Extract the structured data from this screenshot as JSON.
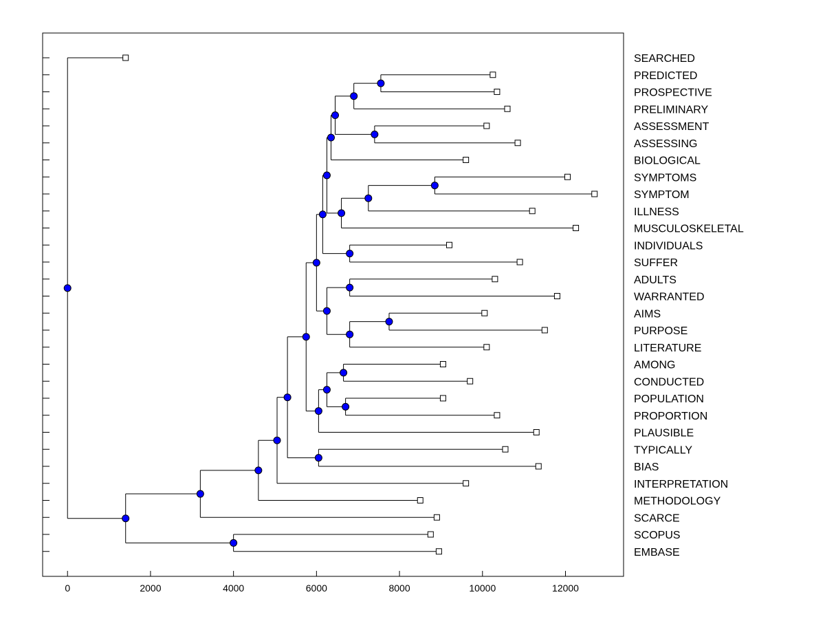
{
  "chart_data": {
    "type": "dendrogram",
    "title": "",
    "xlabel": "",
    "ylabel": "",
    "xlim": [
      -600,
      13400
    ],
    "x_ticks": [
      0,
      2000,
      4000,
      6000,
      8000,
      10000,
      12000
    ],
    "x_tick_labels": [
      "0",
      "2000",
      "4000",
      "6000",
      "8000",
      "10000",
      "12000"
    ],
    "grid": false,
    "legend": "none",
    "colors": {
      "node": "#0000ff",
      "leaf_fill": "#ffffff",
      "line": "#000000"
    },
    "leaves": [
      {
        "label": "SEARCHED",
        "x": 1400
      },
      {
        "label": "PREDICTED",
        "x": 10250
      },
      {
        "label": "PROSPECTIVE",
        "x": 10350
      },
      {
        "label": "PRELIMINARY",
        "x": 10600
      },
      {
        "label": "ASSESSMENT",
        "x": 10100
      },
      {
        "label": "ASSESSING",
        "x": 10850
      },
      {
        "label": "BIOLOGICAL",
        "x": 9600
      },
      {
        "label": "SYMPTOMS",
        "x": 12050
      },
      {
        "label": "SYMPTOM",
        "x": 12700
      },
      {
        "label": "ILLNESS",
        "x": 11200
      },
      {
        "label": "MUSCULOSKELETAL",
        "x": 12250
      },
      {
        "label": "INDIVIDUALS",
        "x": 9200
      },
      {
        "label": "SUFFER",
        "x": 10900
      },
      {
        "label": "ADULTS",
        "x": 10300
      },
      {
        "label": "WARRANTED",
        "x": 11800
      },
      {
        "label": "AIMS",
        "x": 10050
      },
      {
        "label": "PURPOSE",
        "x": 11500
      },
      {
        "label": "LITERATURE",
        "x": 10100
      },
      {
        "label": "AMONG",
        "x": 9050
      },
      {
        "label": "CONDUCTED",
        "x": 9700
      },
      {
        "label": "POPULATION",
        "x": 9050
      },
      {
        "label": "PROPORTION",
        "x": 10350
      },
      {
        "label": "PLAUSIBLE",
        "x": 11300
      },
      {
        "label": "TYPICALLY",
        "x": 10550
      },
      {
        "label": "BIAS",
        "x": 11350
      },
      {
        "label": "INTERPRETATION",
        "x": 9600
      },
      {
        "label": "METHODOLOGY",
        "x": 8500
      },
      {
        "label": "SCARCE",
        "x": 8900
      },
      {
        "label": "SCOPUS",
        "x": 8750
      },
      {
        "label": "EMBASE",
        "x": 8950
      }
    ],
    "merges": [
      {
        "id": "n1",
        "x": 7550,
        "children": [
          "L:PREDICTED",
          "L:PROSPECTIVE"
        ]
      },
      {
        "id": "n2",
        "x": 6900,
        "children": [
          "n1",
          "L:PRELIMINARY"
        ]
      },
      {
        "id": "n3",
        "x": 7400,
        "children": [
          "L:ASSESSMENT",
          "L:ASSESSING"
        ]
      },
      {
        "id": "n4",
        "x": 6450,
        "children": [
          "n2",
          "n3"
        ]
      },
      {
        "id": "n5",
        "x": 6350,
        "children": [
          "n4",
          "L:BIOLOGICAL"
        ]
      },
      {
        "id": "n6",
        "x": 8850,
        "children": [
          "L:SYMPTOMS",
          "L:SYMPTOM"
        ]
      },
      {
        "id": "n7",
        "x": 7250,
        "children": [
          "n6",
          "L:ILLNESS"
        ]
      },
      {
        "id": "n8",
        "x": 6600,
        "children": [
          "n7",
          "L:MUSCULOSKELETAL"
        ]
      },
      {
        "id": "n9",
        "x": 6250,
        "children": [
          "n5",
          "n8"
        ]
      },
      {
        "id": "n10",
        "x": 6800,
        "children": [
          "L:INDIVIDUALS",
          "L:SUFFER"
        ]
      },
      {
        "id": "n11",
        "x": 6150,
        "children": [
          "n9",
          "n10"
        ]
      },
      {
        "id": "n12",
        "x": 6800,
        "children": [
          "L:ADULTS",
          "L:WARRANTED"
        ]
      },
      {
        "id": "n13",
        "x": 7750,
        "children": [
          "L:AIMS",
          "L:PURPOSE"
        ]
      },
      {
        "id": "n14",
        "x": 6800,
        "children": [
          "n13",
          "L:LITERATURE"
        ]
      },
      {
        "id": "n15",
        "x": 6250,
        "children": [
          "n12",
          "n14"
        ]
      },
      {
        "id": "n16",
        "x": 6000,
        "children": [
          "n11",
          "n15"
        ]
      },
      {
        "id": "n17",
        "x": 6650,
        "children": [
          "L:AMONG",
          "L:CONDUCTED"
        ]
      },
      {
        "id": "n18",
        "x": 6700,
        "children": [
          "L:POPULATION",
          "L:PROPORTION"
        ]
      },
      {
        "id": "n19",
        "x": 6250,
        "children": [
          "n17",
          "n18"
        ]
      },
      {
        "id": "n20",
        "x": 6050,
        "children": [
          "n19",
          "L:PLAUSIBLE"
        ]
      },
      {
        "id": "n21",
        "x": 5750,
        "children": [
          "n16",
          "n20"
        ]
      },
      {
        "id": "n22",
        "x": 6050,
        "children": [
          "L:TYPICALLY",
          "L:BIAS"
        ]
      },
      {
        "id": "n23",
        "x": 5300,
        "children": [
          "n21",
          "n22"
        ]
      },
      {
        "id": "n24",
        "x": 5050,
        "children": [
          "n23",
          "L:INTERPRETATION"
        ]
      },
      {
        "id": "n25",
        "x": 4600,
        "children": [
          "n24",
          "L:METHODOLOGY"
        ]
      },
      {
        "id": "n26",
        "x": 3200,
        "children": [
          "n25",
          "L:SCARCE"
        ]
      },
      {
        "id": "n27",
        "x": 4000,
        "children": [
          "L:SCOPUS",
          "L:EMBASE"
        ]
      },
      {
        "id": "n28",
        "x": 1400,
        "children": [
          "n26",
          "n27"
        ]
      },
      {
        "id": "n29",
        "x": 0,
        "children": [
          "L:SEARCHED",
          "n28"
        ]
      }
    ]
  }
}
